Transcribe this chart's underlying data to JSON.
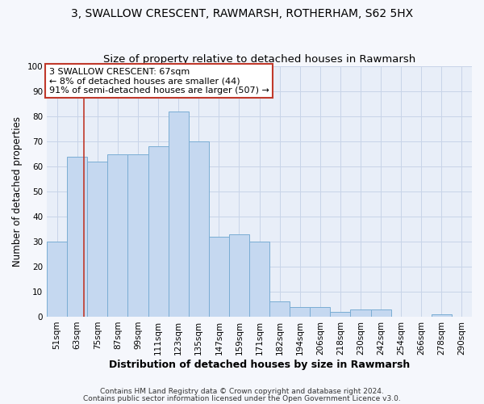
{
  "title": "3, SWALLOW CRESCENT, RAWMARSH, ROTHERHAM, S62 5HX",
  "subtitle": "Size of property relative to detached houses in Rawmarsh",
  "xlabel": "Distribution of detached houses by size in Rawmarsh",
  "ylabel": "Number of detached properties",
  "bin_labels": [
    "51sqm",
    "63sqm",
    "75sqm",
    "87sqm",
    "99sqm",
    "111sqm",
    "123sqm",
    "135sqm",
    "147sqm",
    "159sqm",
    "171sqm",
    "182sqm",
    "194sqm",
    "206sqm",
    "218sqm",
    "230sqm",
    "242sqm",
    "254sqm",
    "266sqm",
    "278sqm",
    "290sqm"
  ],
  "bar_values": [
    30,
    64,
    62,
    65,
    65,
    68,
    82,
    70,
    32,
    33,
    30,
    6,
    4,
    4,
    2,
    3,
    3,
    0,
    0,
    1,
    0
  ],
  "bar_color": "#c5d8f0",
  "bar_edge_color": "#7aadd4",
  "property_line_color": "#c0392b",
  "annotation_text": "3 SWALLOW CRESCENT: 67sqm\n← 8% of detached houses are smaller (44)\n91% of semi-detached houses are larger (507) →",
  "annotation_box_color": "#c0392b",
  "plot_bg_color": "#e8eef8",
  "fig_bg_color": "#f5f7fc",
  "grid_color": "#c8d4e8",
  "footer_line1": "Contains HM Land Registry data © Crown copyright and database right 2024.",
  "footer_line2": "Contains public sector information licensed under the Open Government Licence v3.0.",
  "ylim": [
    0,
    100
  ],
  "title_fontsize": 10,
  "subtitle_fontsize": 9.5,
  "xlabel_fontsize": 9,
  "ylabel_fontsize": 8.5,
  "tick_fontsize": 7.5,
  "annotation_fontsize": 8,
  "footer_fontsize": 6.5
}
